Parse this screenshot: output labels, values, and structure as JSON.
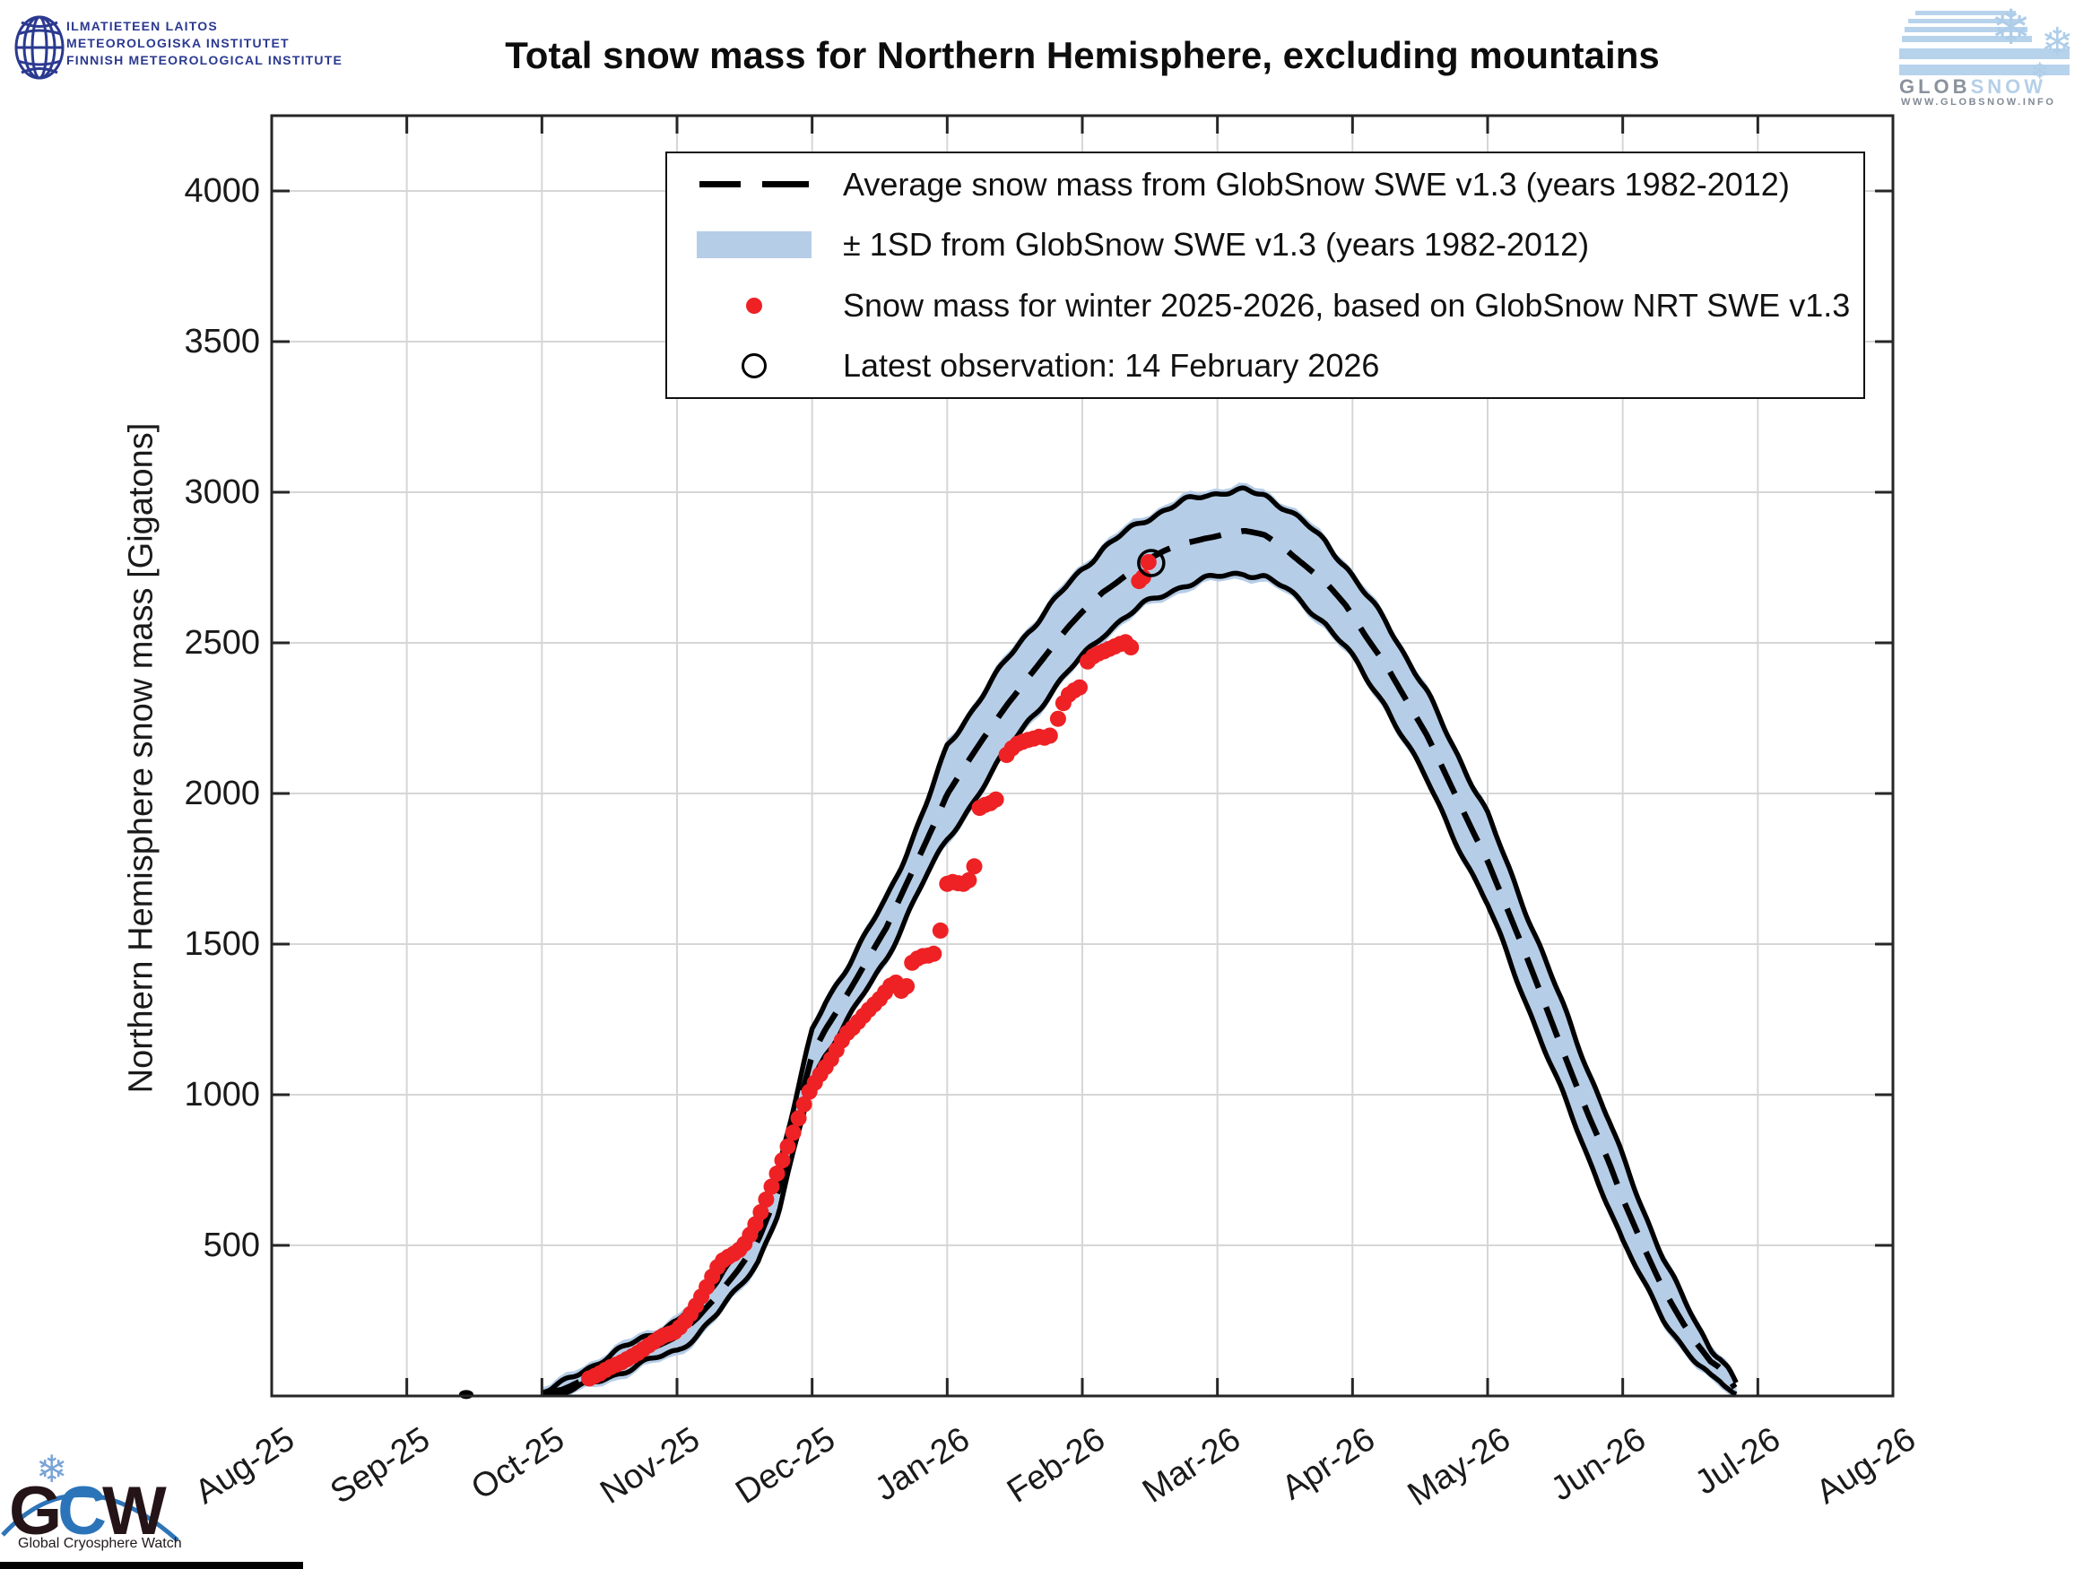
{
  "fmi_logo": {
    "lines": [
      "ILMATIETEEN LAITOS",
      "METEOROLOGISKA INSTITUTET",
      "FINNISH METEOROLOGICAL INSTITUTE"
    ],
    "color": "#2b3990"
  },
  "globsnow_logo": {
    "glob": "GLOB",
    "snow": "SNOW",
    "url": "WWW.GLOBSNOW.INFO",
    "stripe_color": "#b7d3ec"
  },
  "gcw_logo": {
    "g": "G",
    "c": "C",
    "w": "W",
    "tagline": "Global Cryosphere Watch"
  },
  "chart_data": {
    "type": "line",
    "title": "Total snow mass for Northern Hemisphere, excluding mountains",
    "ylabel": "Northern Hemisphere snow mass [Gigatons]",
    "x_tick_labels": [
      "Aug-25",
      "Sep-25",
      "Oct-25",
      "Nov-25",
      "Dec-25",
      "Jan-26",
      "Feb-26",
      "Mar-26",
      "Apr-26",
      "May-26",
      "Jun-26",
      "Jul-26",
      "Aug-26"
    ],
    "y_tick_values": [
      500,
      1000,
      1500,
      2000,
      2500,
      3000,
      3500,
      4000
    ],
    "ylim": [
      0,
      4250
    ],
    "xlim_months": [
      0,
      12
    ],
    "grid": true,
    "legend_position": "top-center",
    "colors": {
      "band_fill": "#b6cde7",
      "band_edge": "#000000",
      "average_line": "#000000",
      "current_dots": "#ee2124",
      "latest_marker": "#000000",
      "grid": "#d6d6d6",
      "axis": "#262626"
    },
    "legend": [
      {
        "marker": "dashed-line",
        "label": "Average snow mass from GlobSnow SWE v1.3 (years 1982-2012)"
      },
      {
        "marker": "band",
        "label": "± 1SD from GlobSnow SWE v1.3 (years 1982-2012)"
      },
      {
        "marker": "red-dot",
        "label": "Snow mass for winter 2025-2026, based on GlobSnow NRT SWE v1.3"
      },
      {
        "marker": "open-circle",
        "label": "Latest observation: 14 February 2026"
      }
    ],
    "climatology_band": {
      "months_x": [
        2.0,
        2.15,
        2.3,
        2.45,
        2.6,
        2.75,
        2.9,
        3.0,
        3.15,
        3.3,
        3.45,
        3.6,
        3.75,
        3.9,
        4.0,
        4.1,
        4.25,
        4.4,
        4.55,
        4.7,
        4.85,
        5.0,
        5.15,
        5.3,
        5.45,
        5.6,
        5.75,
        5.9,
        6.0,
        6.15,
        6.3,
        6.45,
        6.6,
        6.75,
        6.9,
        7.05,
        7.2,
        7.35,
        7.5,
        7.65,
        7.8,
        7.95,
        8.1,
        8.25,
        8.4,
        8.55,
        8.7,
        8.85,
        9.0,
        9.15,
        9.3,
        9.45,
        9.6,
        9.75,
        9.9,
        10.0,
        10.15,
        10.3,
        10.45,
        10.55,
        10.65,
        10.72,
        10.78,
        10.85
      ],
      "mean": [
        8,
        25,
        55,
        90,
        120,
        150,
        180,
        200,
        255,
        330,
        420,
        520,
        680,
        950,
        1130,
        1220,
        1330,
        1440,
        1550,
        1700,
        1850,
        2000,
        2100,
        2200,
        2300,
        2390,
        2470,
        2550,
        2600,
        2670,
        2720,
        2765,
        2800,
        2830,
        2850,
        2862,
        2868,
        2855,
        2815,
        2760,
        2700,
        2620,
        2520,
        2430,
        2310,
        2190,
        2050,
        1915,
        1780,
        1610,
        1440,
        1270,
        1100,
        930,
        770,
        650,
        500,
        360,
        240,
        170,
        110,
        90,
        60,
        15
      ],
      "halfwidth": [
        8,
        15,
        25,
        33,
        38,
        42,
        46,
        48,
        52,
        58,
        64,
        70,
        75,
        80,
        80,
        85,
        90,
        95,
        100,
        105,
        120,
        155,
        155,
        152,
        150,
        148,
        146,
        145,
        145,
        142,
        140,
        140,
        140,
        138,
        140,
        140,
        135,
        135,
        135,
        135,
        135,
        135,
        138,
        140,
        142,
        146,
        148,
        150,
        150,
        150,
        150,
        150,
        148,
        145,
        142,
        140,
        120,
        100,
        80,
        65,
        50,
        40,
        30,
        15
      ]
    },
    "september_blip": {
      "x": 1.44,
      "y": 5
    },
    "current_winter": {
      "points": [
        [
          2.35,
          58
        ],
        [
          2.39,
          66
        ],
        [
          2.43,
          75
        ],
        [
          2.47,
          86
        ],
        [
          2.51,
          96
        ],
        [
          2.55,
          104
        ],
        [
          2.59,
          112
        ],
        [
          2.63,
          122
        ],
        [
          2.67,
          132
        ],
        [
          2.71,
          143
        ],
        [
          2.75,
          155
        ],
        [
          2.79,
          168
        ],
        [
          2.83,
          180
        ],
        [
          2.87,
          192
        ],
        [
          2.9,
          200
        ],
        [
          2.94,
          206
        ],
        [
          2.98,
          212
        ],
        [
          3.02,
          228
        ],
        [
          3.06,
          248
        ],
        [
          3.1,
          272
        ],
        [
          3.14,
          300
        ],
        [
          3.18,
          330
        ],
        [
          3.22,
          362
        ],
        [
          3.26,
          396
        ],
        [
          3.3,
          428
        ],
        [
          3.34,
          450
        ],
        [
          3.38,
          462
        ],
        [
          3.42,
          472
        ],
        [
          3.46,
          485
        ],
        [
          3.5,
          505
        ],
        [
          3.54,
          535
        ],
        [
          3.58,
          570
        ],
        [
          3.62,
          610
        ],
        [
          3.66,
          652
        ],
        [
          3.7,
          695
        ],
        [
          3.74,
          738
        ],
        [
          3.78,
          782
        ],
        [
          3.82,
          828
        ],
        [
          3.86,
          874
        ],
        [
          3.9,
          922
        ],
        [
          3.94,
          968
        ],
        [
          3.98,
          1010
        ],
        [
          4.02,
          1040
        ],
        [
          4.06,
          1068
        ],
        [
          4.1,
          1092
        ],
        [
          4.14,
          1118
        ],
        [
          4.18,
          1148
        ],
        [
          4.22,
          1180
        ],
        [
          4.26,
          1205
        ],
        [
          4.3,
          1222
        ],
        [
          4.34,
          1242
        ],
        [
          4.38,
          1262
        ],
        [
          4.42,
          1282
        ],
        [
          4.46,
          1300
        ],
        [
          4.5,
          1318
        ],
        [
          4.54,
          1340
        ],
        [
          4.58,
          1362
        ],
        [
          4.62,
          1372
        ],
        [
          4.66,
          1345
        ],
        [
          4.7,
          1360
        ],
        [
          4.74,
          1438
        ],
        [
          4.78,
          1452
        ],
        [
          4.82,
          1460
        ],
        [
          4.86,
          1462
        ],
        [
          4.9,
          1468
        ],
        [
          4.95,
          1545
        ],
        [
          5.0,
          1700
        ],
        [
          5.04,
          1706
        ],
        [
          5.08,
          1702
        ],
        [
          5.12,
          1700
        ],
        [
          5.16,
          1712
        ],
        [
          5.2,
          1758
        ],
        [
          5.24,
          1952
        ],
        [
          5.28,
          1962
        ],
        [
          5.32,
          1968
        ],
        [
          5.36,
          1980
        ],
        [
          5.44,
          2128
        ],
        [
          5.48,
          2150
        ],
        [
          5.52,
          2165
        ],
        [
          5.56,
          2172
        ],
        [
          5.6,
          2178
        ],
        [
          5.64,
          2182
        ],
        [
          5.68,
          2188
        ],
        [
          5.72,
          2185
        ],
        [
          5.76,
          2192
        ],
        [
          5.82,
          2248
        ],
        [
          5.86,
          2300
        ],
        [
          5.9,
          2328
        ],
        [
          5.94,
          2342
        ],
        [
          5.98,
          2352
        ],
        [
          6.04,
          2438
        ],
        [
          6.08,
          2455
        ],
        [
          6.12,
          2465
        ],
        [
          6.16,
          2472
        ],
        [
          6.2,
          2480
        ],
        [
          6.24,
          2488
        ],
        [
          6.28,
          2496
        ],
        [
          6.32,
          2502
        ],
        [
          6.36,
          2485
        ],
        [
          6.42,
          2705
        ],
        [
          6.45,
          2718
        ],
        [
          6.49,
          2768
        ]
      ]
    },
    "latest_observation": {
      "x": 6.51,
      "y": 2765,
      "date": "14 February 2026"
    }
  }
}
